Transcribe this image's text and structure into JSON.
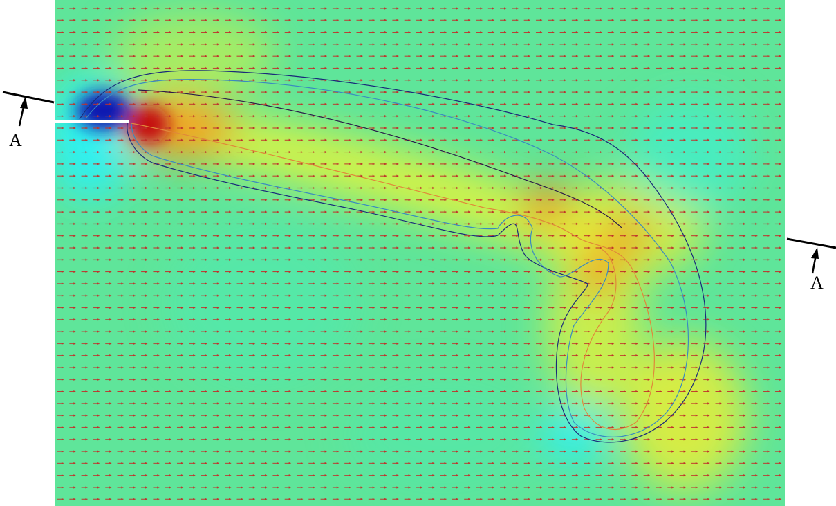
{
  "section_markers": [
    {
      "label": "A"
    },
    {
      "label": "A"
    }
  ]
}
